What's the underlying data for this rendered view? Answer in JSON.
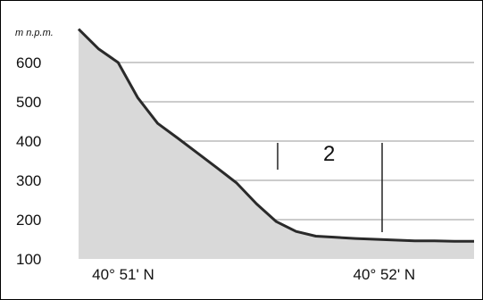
{
  "chart_data": {
    "type": "area",
    "ylabel": "m n.p.m.",
    "ylim": [
      100,
      700
    ],
    "y_ticks": [
      100,
      200,
      300,
      400,
      500,
      600
    ],
    "x_ticks": [
      "40° 51' N",
      "40° 52' N"
    ],
    "grid": true,
    "profile": {
      "x": [
        0.0,
        0.05,
        0.1,
        0.15,
        0.2,
        0.25,
        0.3,
        0.35,
        0.4,
        0.45,
        0.5,
        0.55,
        0.6,
        0.65,
        0.7,
        0.75,
        0.8,
        0.85,
        0.9,
        0.95,
        1.0
      ],
      "y": [
        685,
        635,
        600,
        510,
        445,
        408,
        370,
        332,
        293,
        240,
        195,
        170,
        158,
        155,
        152,
        150,
        148,
        146,
        146,
        145,
        145
      ]
    },
    "annotation": {
      "label": "2"
    },
    "colors": {
      "fill": "#d9d9d9",
      "line": "#2a2a2a",
      "grid": "#9a9a9a",
      "border": "#000000"
    }
  }
}
